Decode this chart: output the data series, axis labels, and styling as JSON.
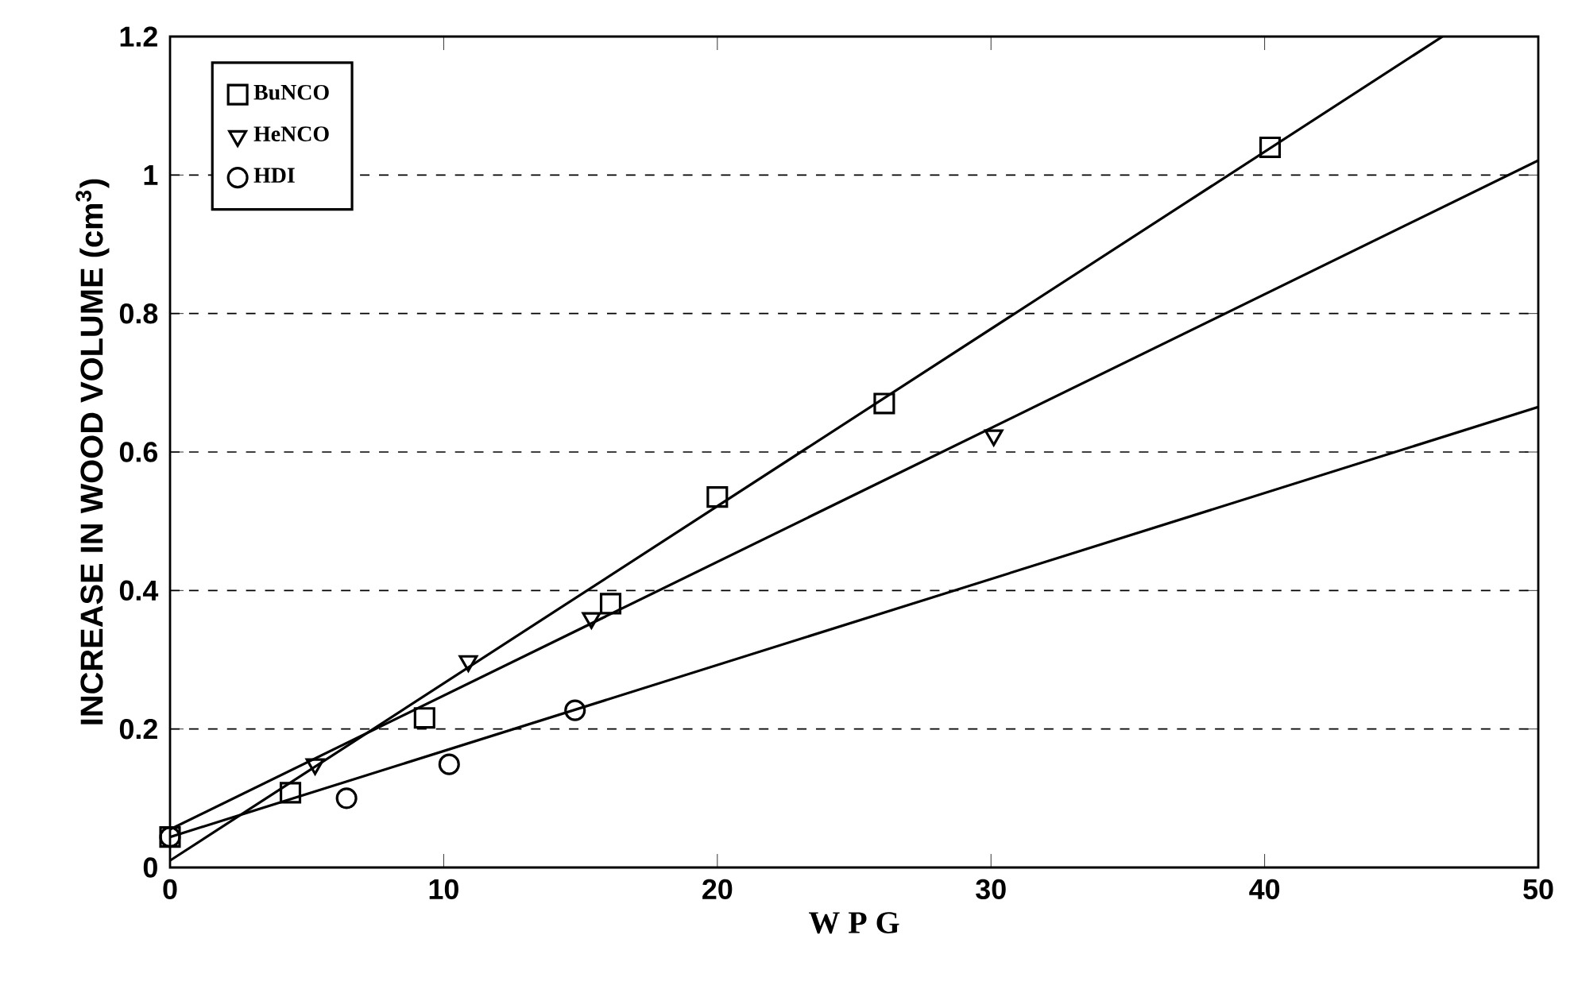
{
  "chart_data": {
    "type": "scatter",
    "xlabel": "W P G",
    "ylabel": "INCREASE IN WOOD VOLUME (cm$^{3}$)",
    "xlim": [
      0,
      50
    ],
    "ylim": [
      0,
      1.2
    ],
    "xticks": [
      0,
      10,
      20,
      30,
      40,
      50
    ],
    "yticks": [
      0,
      0.2,
      0.4,
      0.6,
      0.8,
      1,
      1.2
    ],
    "grid": "y",
    "legend": "top left",
    "series": [
      {
        "name": "BuNCO",
        "color": "#000000",
        "marker": "square",
        "x": [
          0,
          4.4,
          9.3,
          16.1,
          20,
          26.1,
          40.2
        ],
        "values": [
          0.044,
          0.108,
          0.216,
          0.381,
          0.535,
          0.67,
          1.04
        ]
      },
      {
        "name": "HeNCO",
        "color": "#000000",
        "marker": "triangle",
        "x": [
          5.3,
          10.9,
          15.4,
          30.1
        ],
        "values": [
          0.149,
          0.298,
          0.36,
          0.624
        ]
      },
      {
        "name": "HDI",
        "color": "#000000",
        "marker": "circle",
        "x": [
          0,
          6.45,
          10.2,
          14.8
        ],
        "values": [
          0.044,
          0.1,
          0.149,
          0.227
        ]
      },
      {
        "type": "line",
        "color": "#000000",
        "marker": "none",
        "x": [
          0,
          46.5
        ],
        "values": [
          0.01,
          1.2
        ]
      },
      {
        "type": "line",
        "color": "#000000",
        "marker": "none",
        "x": [
          0,
          50
        ],
        "values": [
          0.055,
          1.021
        ]
      },
      {
        "type": "line",
        "color": "#000000",
        "marker": "none",
        "x": [
          0,
          50
        ],
        "values": [
          0.044,
          0.665
        ]
      }
    ]
  }
}
